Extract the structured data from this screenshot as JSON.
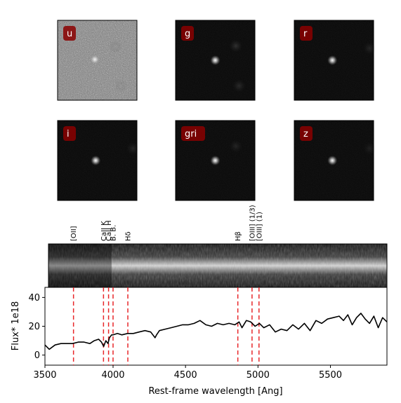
{
  "chart_data": {
    "type": "line",
    "image_panels": [
      {
        "band": "u",
        "style": "noisy",
        "sources": [
          [
            0.47,
            0.49,
            0.9
          ],
          [
            0.73,
            0.33,
            0.6
          ],
          [
            0.8,
            0.82,
            0.55
          ]
        ]
      },
      {
        "band": "g",
        "style": "dark",
        "sources": [
          [
            0.5,
            0.5,
            1.0
          ],
          [
            0.76,
            0.32,
            0.3
          ],
          [
            0.8,
            0.82,
            0.25
          ]
        ]
      },
      {
        "band": "r",
        "style": "dark",
        "sources": [
          [
            0.48,
            0.5,
            1.0
          ],
          [
            0.95,
            0.35,
            0.2
          ]
        ]
      },
      {
        "band": "i",
        "style": "dark",
        "sources": [
          [
            0.48,
            0.5,
            1.0
          ],
          [
            0.95,
            0.35,
            0.2
          ]
        ]
      },
      {
        "band": "gri",
        "style": "dark",
        "sources": [
          [
            0.5,
            0.5,
            1.0
          ],
          [
            0.76,
            0.32,
            0.2
          ]
        ]
      },
      {
        "band": "z",
        "style": "dark",
        "sources": [
          [
            0.48,
            0.5,
            1.0
          ],
          [
            0.95,
            0.35,
            0.15
          ]
        ]
      }
    ],
    "emission_lines": [
      {
        "label": "[OII]",
        "wavelength": 3727
      },
      {
        "label": "CaII K",
        "wavelength": 3934
      },
      {
        "label": "CaII H",
        "wavelength": 3969
      },
      {
        "label": "B. B.",
        "wavelength": 4000
      },
      {
        "label": "Hδ",
        "wavelength": 4102
      },
      {
        "label": "Hβ",
        "wavelength": 4861
      },
      {
        "label": "[OIII] (1/3)",
        "wavelength": 4959
      },
      {
        "label": "[OIII] (1)",
        "wavelength": 5007
      }
    ],
    "spectrum": {
      "x": [
        3530,
        3560,
        3600,
        3640,
        3680,
        3720,
        3760,
        3800,
        3840,
        3870,
        3900,
        3920,
        3935,
        3950,
        3965,
        3975,
        3990,
        4000,
        4030,
        4060,
        4100,
        4140,
        4180,
        4220,
        4260,
        4290,
        4300,
        4320,
        4360,
        4400,
        4440,
        4480,
        4520,
        4560,
        4600,
        4640,
        4680,
        4720,
        4760,
        4800,
        4840,
        4870,
        4890,
        4920,
        4950,
        4980,
        5010,
        5040,
        5080,
        5120,
        5160,
        5200,
        5240,
        5280,
        5320,
        5360,
        5400,
        5440,
        5480,
        5520,
        5560,
        5590,
        5620,
        5650,
        5680,
        5710,
        5740,
        5770,
        5800,
        5830,
        5860,
        5890
      ],
      "y": [
        7,
        4,
        7,
        8,
        8,
        8,
        9,
        9,
        8,
        10,
        11,
        9,
        6,
        10,
        8,
        12,
        14,
        14,
        15,
        14,
        15,
        15,
        16,
        17,
        16,
        12,
        14,
        17,
        18,
        19,
        20,
        21,
        21,
        22,
        24,
        21,
        20,
        22,
        21,
        22,
        21,
        23,
        19,
        24,
        23,
        20,
        22,
        19,
        21,
        16,
        18,
        17,
        21,
        18,
        22,
        17,
        24,
        22,
        25,
        26,
        27,
        24,
        28,
        21,
        26,
        29,
        25,
        22,
        27,
        19,
        26,
        23
      ]
    },
    "xlabel": "Rest-frame wavelength [Ang]",
    "ylabel": "Flux* 1e18",
    "xlim": [
      3530,
      5890
    ],
    "ylim": [
      -7,
      47
    ],
    "xticks": [
      3500,
      4000,
      4500,
      5000,
      5500
    ],
    "yticks": [
      0,
      20,
      40
    ],
    "line_color": "#000000",
    "marker_color": "#e8282b",
    "band_label_bg": "#8b0000",
    "grid": false
  }
}
